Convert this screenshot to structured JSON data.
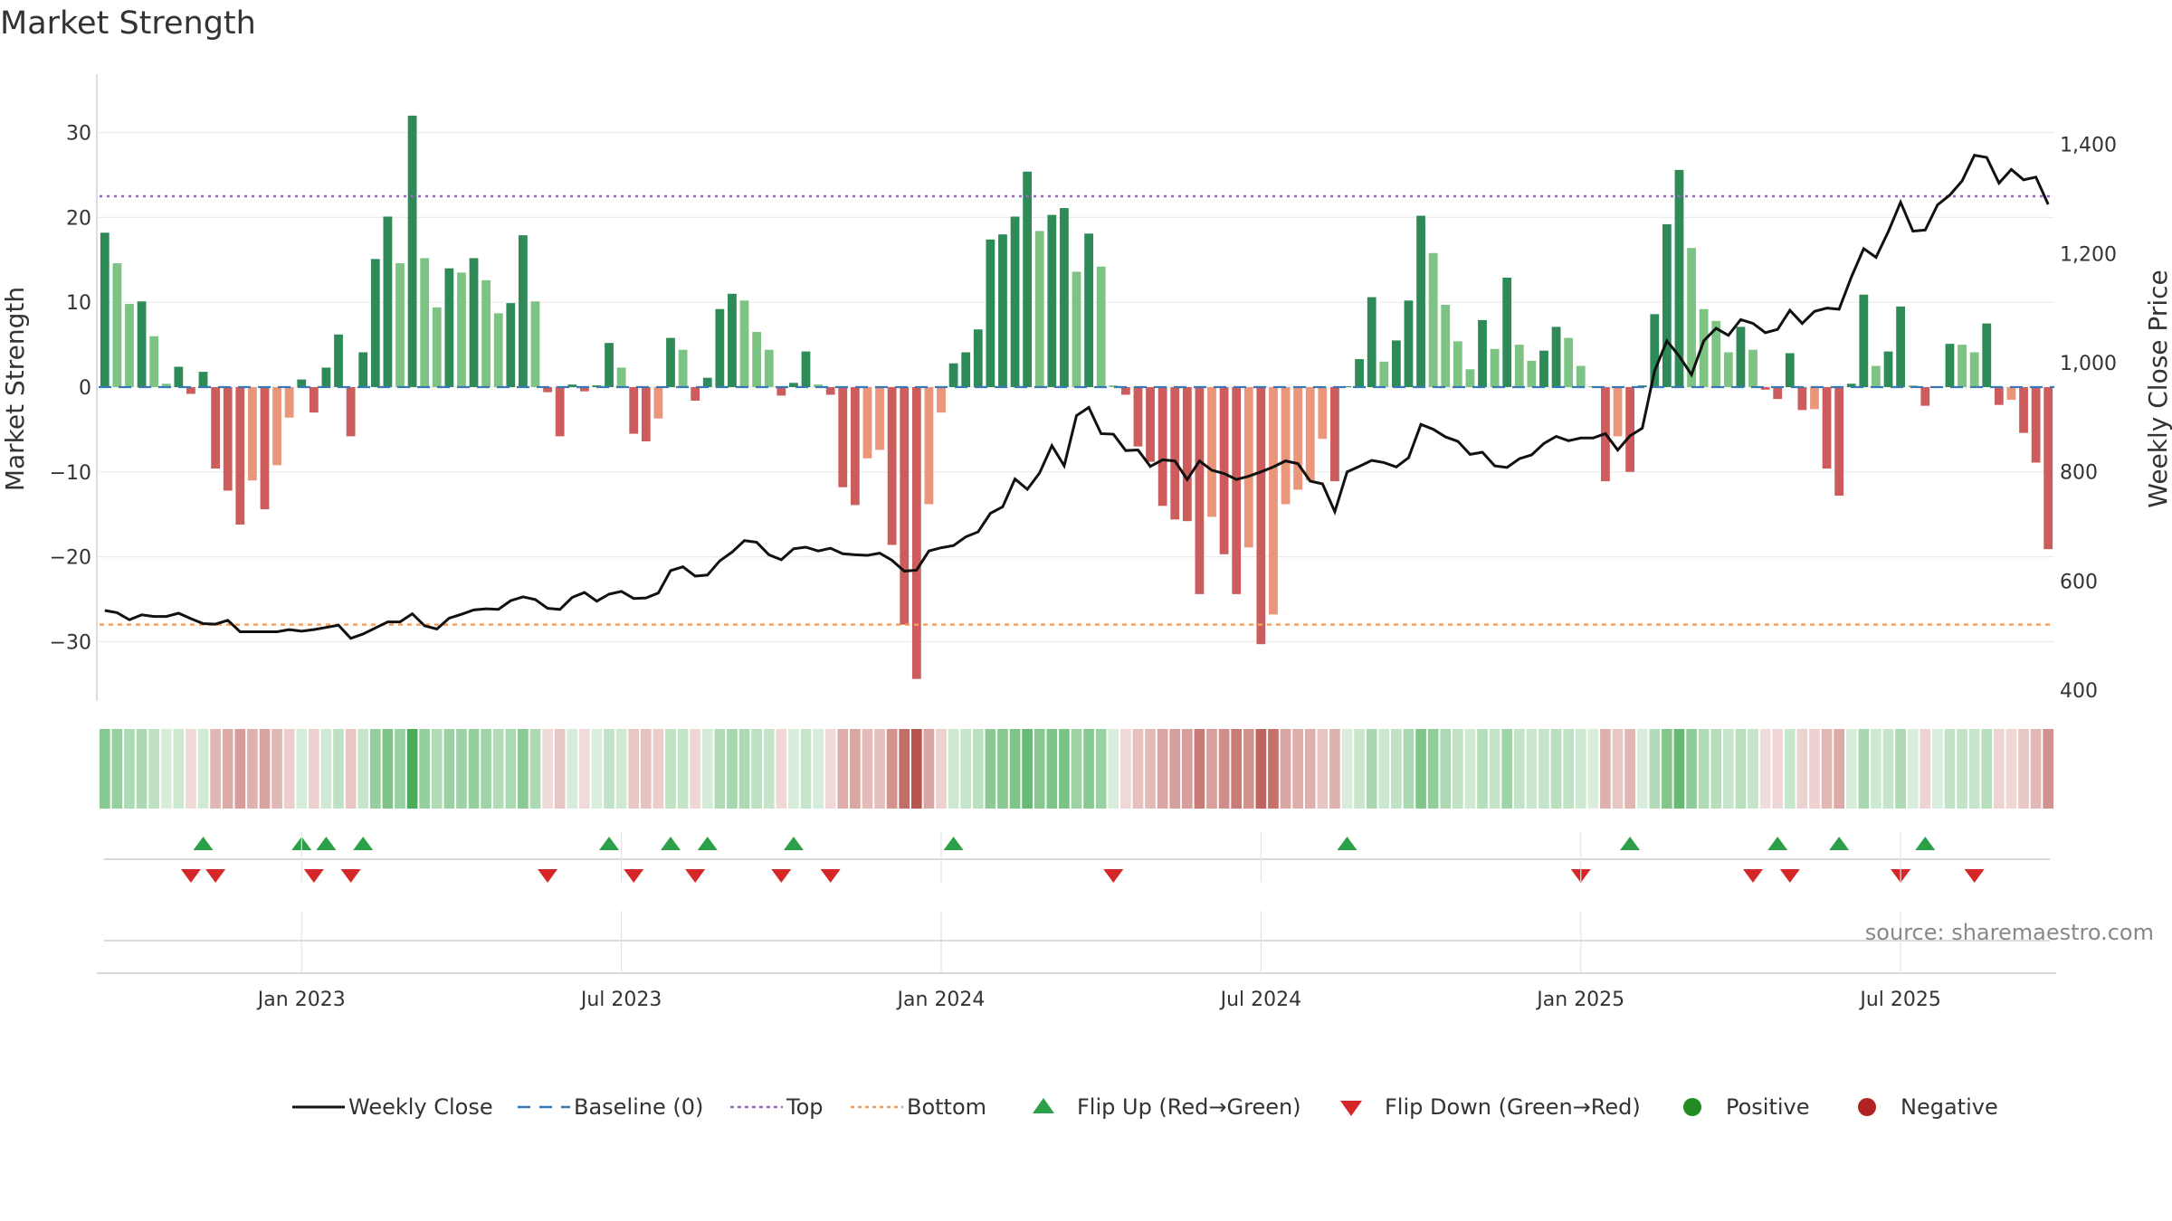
{
  "chart_data": {
    "type": "bar",
    "title": "Market Strength",
    "ylabel": "Market Strength",
    "y2label": "Weekly Close Price",
    "ylim": [
      -37,
      37
    ],
    "y2lim": [
      390,
      1490
    ],
    "yticks": [
      "30",
      "20",
      "10",
      "0",
      "−10",
      "−20",
      "−30"
    ],
    "y2ticks": [
      "1,400",
      "1,200",
      "1,000",
      "800",
      "600",
      "400"
    ],
    "xticks": [
      "Jan 2023",
      "Jul 2023",
      "Jan 2024",
      "Jul 2024",
      "Jan 2025",
      "Jul 2025"
    ],
    "top_level": 22.5,
    "bottom_level": -28,
    "grid": true,
    "legend_position": "bottom",
    "source": "source: sharemaestro.com",
    "legend": [
      {
        "label": "Weekly Close",
        "kind": "line",
        "color": "#111111"
      },
      {
        "label": "Baseline (0)",
        "kind": "dash",
        "color": "#3a78b5"
      },
      {
        "label": "Top",
        "kind": "dot",
        "color": "#9467bd"
      },
      {
        "label": "Bottom",
        "kind": "dot",
        "color": "#f0a060"
      },
      {
        "label": "Flip Up (Red→Green)",
        "kind": "tri-up",
        "color": "#2ca048"
      },
      {
        "label": "Flip Down (Green→Red)",
        "kind": "tri-down",
        "color": "#d62728"
      },
      {
        "label": "Positive",
        "kind": "dot-marker",
        "color": "#228b22"
      },
      {
        "label": "Negative",
        "kind": "dot-marker",
        "color": "#b22222"
      }
    ],
    "colors": {
      "pos_strong": "#2e8b57",
      "pos_weak": "#7dc383",
      "neg_strong": "#cd5c5c",
      "neg_weak": "#e9967a",
      "top": "#9467bd",
      "bottom": "#f0a060",
      "price": "#111111",
      "flip_up": "#2ca048",
      "flip_down": "#d62728"
    },
    "series": [
      {
        "name": "Market Strength",
        "values": [
          18.2,
          14.6,
          9.8,
          10.1,
          6.0,
          0.4,
          2.4,
          -0.8,
          1.8,
          -9.6,
          -12.2,
          -16.2,
          -11.0,
          -14.4,
          -9.2,
          -3.6,
          0.9,
          -3.0,
          2.3,
          6.2,
          -5.8,
          4.1,
          15.1,
          20.1,
          14.6,
          32.0,
          15.2,
          9.4,
          14.0,
          13.5,
          15.2,
          12.6,
          8.7,
          9.9,
          17.9,
          10.1,
          -0.6,
          -5.8,
          0.3,
          -0.5,
          0.2,
          5.2,
          2.3,
          -5.5,
          -6.4,
          -3.7,
          5.8,
          4.4,
          -1.6,
          1.1,
          9.2,
          11.0,
          10.2,
          6.5,
          4.4,
          -1.0,
          0.5,
          4.2,
          0.3,
          -0.9,
          -11.8,
          -13.9,
          -8.4,
          -7.4,
          -18.6,
          -28.0,
          -34.4,
          -13.8,
          -3.0,
          2.8,
          4.1,
          6.8,
          17.4,
          18.0,
          20.1,
          25.4,
          18.4,
          20.3,
          21.1,
          13.6,
          18.1,
          14.2,
          0.2,
          -0.9,
          -7.0,
          -8.8,
          -14.0,
          -15.6,
          -15.8,
          -24.4,
          -15.3,
          -19.7,
          -24.4,
          -18.9,
          -30.3,
          -26.8,
          -13.8,
          -12.1,
          -11.0,
          -6.1,
          -11.1,
          0.1,
          3.3,
          10.6,
          3.0,
          5.5,
          10.2,
          20.2,
          15.8,
          9.7,
          5.4,
          2.1,
          7.9,
          4.5,
          12.9,
          5.0,
          3.1,
          4.3,
          7.1,
          5.8,
          2.5,
          0.1,
          -11.1,
          -5.8,
          -10.0,
          0.2,
          8.6,
          19.2,
          25.6,
          16.4,
          9.2,
          7.8,
          4.1,
          7.1,
          4.4,
          -0.3,
          -1.4,
          4.0,
          -2.7,
          -2.6,
          -9.6,
          -12.8,
          0.4,
          10.9,
          2.5,
          4.2,
          9.5,
          0.2,
          -2.2,
          0.1,
          5.1,
          5.0,
          4.1,
          7.5,
          -2.1,
          -1.5,
          -5.4,
          -8.9,
          -19.1
        ]
      },
      {
        "name": "Weekly Close",
        "values": [
          546,
          542,
          529,
          538,
          535,
          535,
          541,
          531,
          522,
          521,
          528,
          507,
          507,
          507,
          507,
          511,
          508,
          511,
          515,
          519,
          495,
          503,
          514,
          525,
          525,
          540,
          518,
          512,
          532,
          539,
          547,
          549,
          548,
          564,
          571,
          566,
          550,
          548,
          570,
          579,
          563,
          576,
          581,
          568,
          569,
          578,
          619,
          626,
          609,
          611,
          637,
          653,
          674,
          671,
          648,
          639,
          659,
          662,
          655,
          660,
          650,
          648,
          647,
          651,
          638,
          618,
          620,
          655,
          661,
          665,
          681,
          690,
          724,
          736,
          787,
          768,
          798,
          848,
          811,
          903,
          918,
          870,
          869,
          839,
          840,
          810,
          822,
          820,
          786,
          820,
          803,
          797,
          786,
          792,
          800,
          809,
          820,
          815,
          783,
          778,
          727,
          800,
          810,
          821,
          817,
          809,
          826,
          887,
          878,
          864,
          856,
          832,
          836,
          811,
          808,
          824,
          831,
          852,
          865,
          857,
          862,
          862,
          870,
          840,
          866,
          880,
          985,
          1040,
          1012,
          978,
          1040,
          1063,
          1050,
          1079,
          1072,
          1055,
          1061,
          1096,
          1072,
          1094,
          1100,
          1098,
          1157,
          1209,
          1193,
          1240,
          1294,
          1241,
          1243,
          1289,
          1307,
          1333,
          1380,
          1376,
          1329,
          1354,
          1335,
          1340,
          1290
        ]
      }
    ],
    "flip_up_weeks": [
      8,
      16,
      18,
      21,
      41,
      46,
      49,
      56,
      69,
      101,
      124,
      136,
      141,
      148
    ],
    "flip_down_weeks": [
      7,
      9,
      17,
      20,
      36,
      43,
      48,
      55,
      59,
      82,
      120,
      134,
      137,
      146,
      152
    ]
  }
}
